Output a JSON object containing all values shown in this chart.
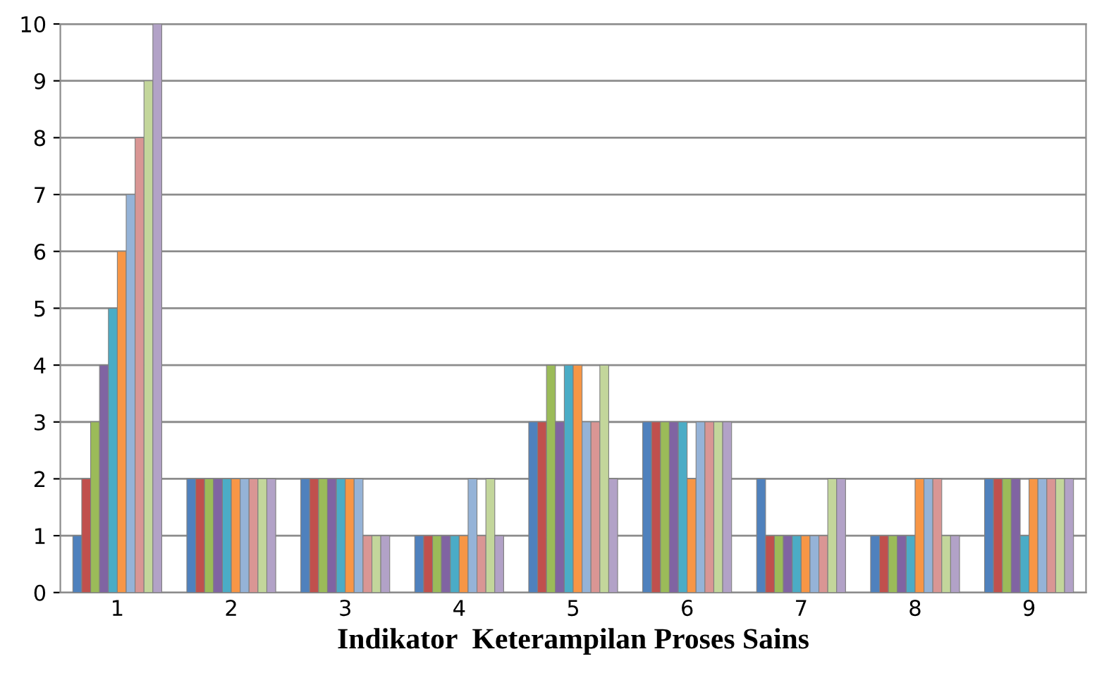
{
  "chart_data": {
    "type": "bar",
    "xlabel": "Indikator  Keterampilan Proses Sains",
    "categories": [
      "1",
      "2",
      "3",
      "4",
      "5",
      "6",
      "7",
      "8",
      "9"
    ],
    "series": [
      {
        "color": "#4f81bd",
        "values": [
          1,
          2,
          2,
          1,
          3,
          3,
          2,
          1,
          2
        ]
      },
      {
        "color": "#c0504d",
        "values": [
          2,
          2,
          2,
          1,
          3,
          3,
          1,
          1,
          2
        ]
      },
      {
        "color": "#9bbb59",
        "values": [
          3,
          2,
          2,
          1,
          4,
          3,
          1,
          1,
          2
        ]
      },
      {
        "color": "#8064a2",
        "values": [
          4,
          2,
          2,
          1,
          3,
          3,
          1,
          1,
          2
        ]
      },
      {
        "color": "#4bacc6",
        "values": [
          5,
          2,
          2,
          1,
          4,
          3,
          1,
          1,
          1
        ]
      },
      {
        "color": "#f79646",
        "values": [
          6,
          2,
          2,
          1,
          4,
          2,
          1,
          2,
          2
        ]
      },
      {
        "color": "#95b3d7",
        "values": [
          7,
          2,
          2,
          2,
          3,
          3,
          1,
          2,
          2
        ]
      },
      {
        "color": "#d99694",
        "values": [
          8,
          2,
          1,
          1,
          3,
          3,
          1,
          2,
          2
        ]
      },
      {
        "color": "#c3d69b",
        "values": [
          9,
          2,
          1,
          2,
          4,
          3,
          2,
          1,
          2
        ]
      },
      {
        "color": "#b2a2c7",
        "values": [
          10,
          2,
          1,
          1,
          2,
          3,
          2,
          1,
          2
        ]
      }
    ],
    "ylim": [
      0,
      10
    ],
    "yticks": [
      0,
      1,
      2,
      3,
      4,
      5,
      6,
      7,
      8,
      9,
      10
    ],
    "grid": "y",
    "legend": false
  }
}
